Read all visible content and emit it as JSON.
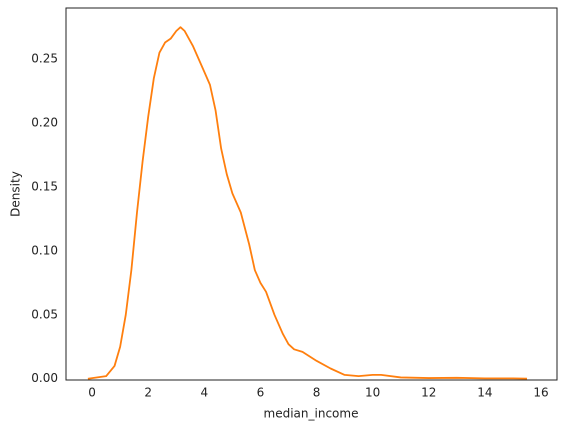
{
  "chart_data": {
    "type": "line",
    "x_label": "median_income",
    "y_label": "Density",
    "x": [
      -0.15,
      0.5,
      0.8,
      1.0,
      1.2,
      1.4,
      1.6,
      1.8,
      2.0,
      2.2,
      2.4,
      2.6,
      2.8,
      3.0,
      3.15,
      3.3,
      3.6,
      4.0,
      4.2,
      4.4,
      4.6,
      4.8,
      5.0,
      5.3,
      5.6,
      5.8,
      6.0,
      6.2,
      6.5,
      6.8,
      7.0,
      7.2,
      7.5,
      8.0,
      8.5,
      9.0,
      9.5,
      10.0,
      10.3,
      11.0,
      12.0,
      13.0,
      14.0,
      15.0,
      15.5
    ],
    "series": [
      {
        "color": "#ff7f0e",
        "values": [
          0,
          0.002,
          0.01,
          0.025,
          0.05,
          0.085,
          0.13,
          0.17,
          0.205,
          0.235,
          0.255,
          0.263,
          0.266,
          0.272,
          0.275,
          0.272,
          0.26,
          0.24,
          0.23,
          0.21,
          0.18,
          0.16,
          0.145,
          0.13,
          0.105,
          0.085,
          0.075,
          0.068,
          0.05,
          0.035,
          0.027,
          0.023,
          0.021,
          0.014,
          0.008,
          0.003,
          0.002,
          0.003,
          0.003,
          0.001,
          0.0005,
          0.0007,
          0.0003,
          0.0003,
          0.0001
        ]
      }
    ],
    "xlim": [
      -0.93,
      16.57
    ],
    "ylim": [
      -0.001,
      0.29
    ],
    "xticks": [
      0,
      2,
      4,
      6,
      8,
      10,
      12,
      14,
      16
    ],
    "yticks": [
      {
        "value": 0,
        "label": "0.00"
      },
      {
        "value": 0.05,
        "label": "0.05"
      },
      {
        "value": 0.1,
        "label": "0.10"
      },
      {
        "value": 0.15,
        "label": "0.15"
      },
      {
        "value": 0.2,
        "label": "0.20"
      },
      {
        "value": 0.25,
        "label": "0.25"
      }
    ],
    "grid": false
  }
}
